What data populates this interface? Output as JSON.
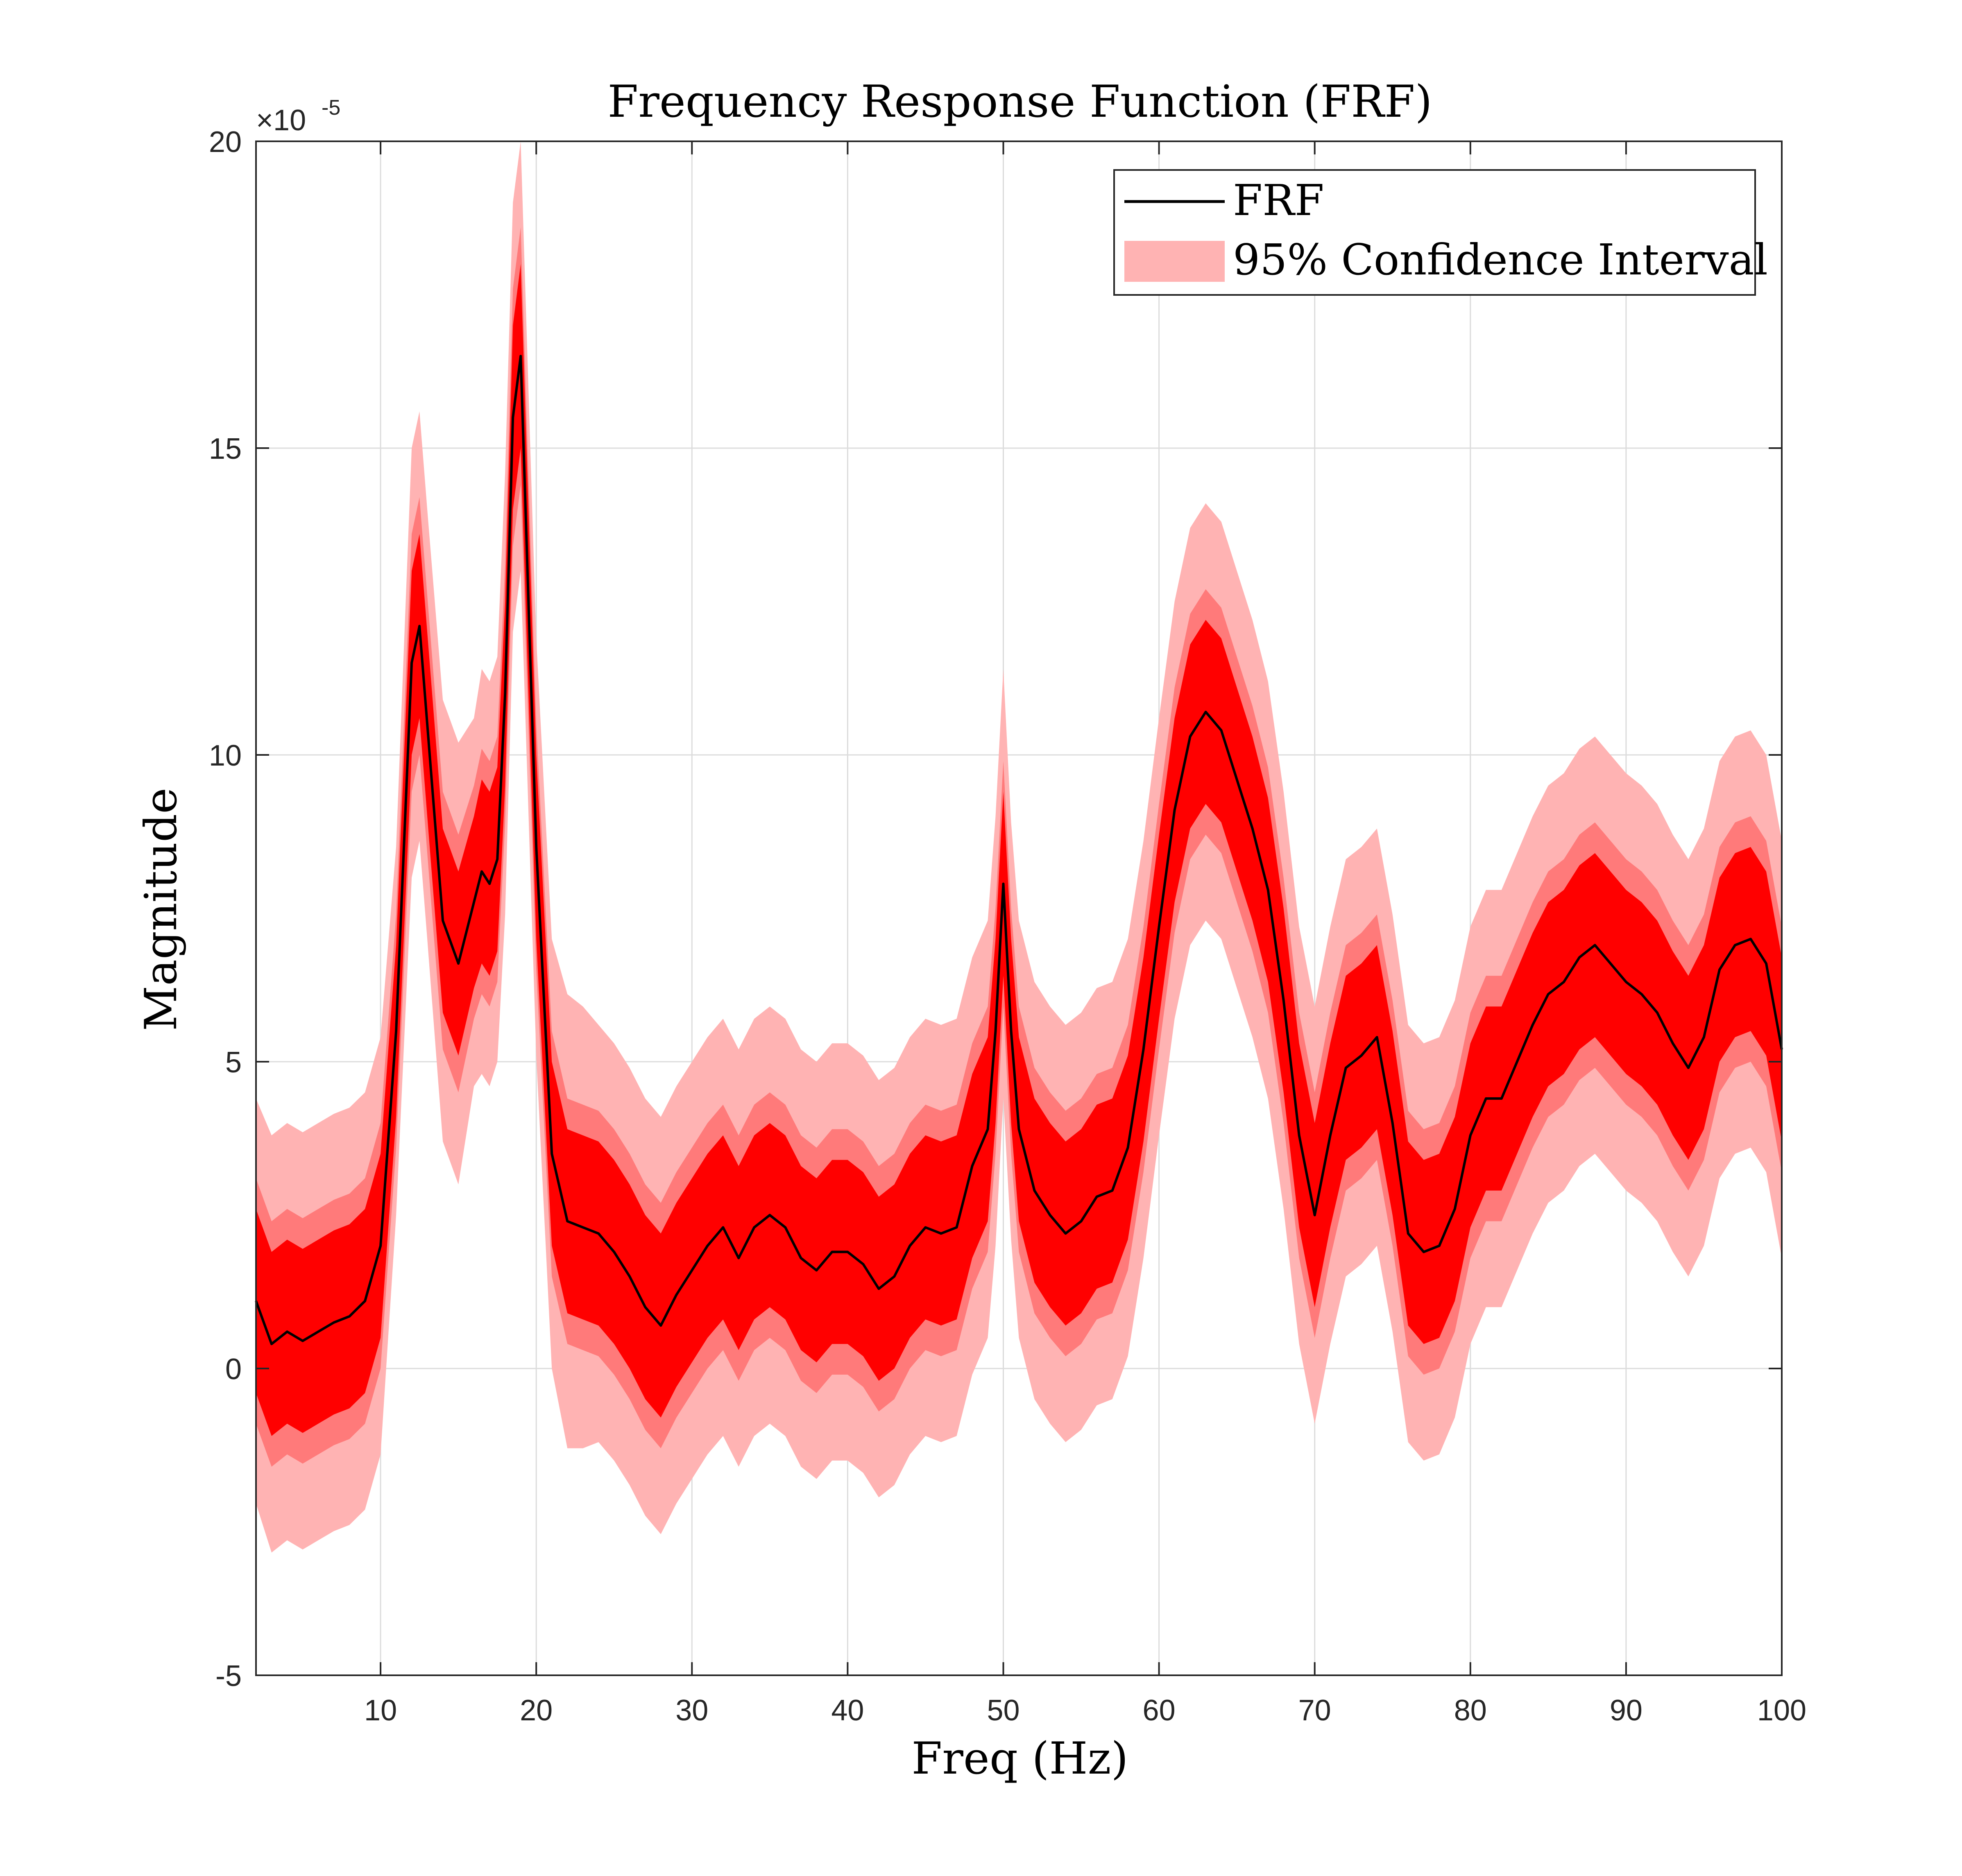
{
  "chart_data": {
    "type": "area",
    "title": "Frequency Response Function (FRF)",
    "xlabel": "Freq (Hz)",
    "ylabel": "Magnitude",
    "y_multiplier_label": "×10",
    "y_multiplier_exponent": "-5",
    "xlim": [
      2,
      100
    ],
    "ylim": [
      -5,
      20
    ],
    "x_ticks": [
      10,
      20,
      30,
      40,
      50,
      60,
      70,
      80,
      90,
      100
    ],
    "y_ticks": [
      -5,
      0,
      5,
      10,
      15,
      20
    ],
    "x_tick_labels": [
      "10",
      "20",
      "30",
      "40",
      "50",
      "60",
      "70",
      "80",
      "90",
      "100"
    ],
    "y_tick_labels": [
      "-5",
      "0",
      "5",
      "10",
      "15",
      "20"
    ],
    "grid": true,
    "legend_position": "top-right",
    "legend": [
      {
        "label": "FRF",
        "kind": "line",
        "color": "#000000"
      },
      {
        "label": "95% Confidence Interval",
        "kind": "patch",
        "color": "#ffb3b3"
      }
    ],
    "colors": {
      "frf_line": "#000000",
      "band_outer": "#ffb3b3",
      "band_mid": "#ff7a7a",
      "band_inner": "#ff0000",
      "grid": "#dcdcdc",
      "axes": "#262626"
    },
    "series": [
      {
        "name": "FRF",
        "x": [
          2,
          3,
          4,
          5,
          6,
          7,
          8,
          9,
          10,
          11,
          12,
          12.5,
          13,
          14,
          15,
          16,
          16.5,
          17,
          17.5,
          18,
          18.5,
          19,
          20,
          21,
          22,
          23,
          24,
          25,
          26,
          27,
          28,
          29,
          30,
          31,
          32,
          33,
          34,
          35,
          36,
          37,
          38,
          39,
          40,
          41,
          42,
          43,
          44,
          45,
          46,
          47,
          48,
          49,
          49.5,
          50,
          50.5,
          51,
          52,
          53,
          54,
          55,
          56,
          57,
          58,
          59,
          60,
          61,
          62,
          63,
          64,
          65,
          66,
          67,
          68,
          69,
          70,
          71,
          72,
          73,
          74,
          75,
          76,
          77,
          78,
          79,
          80,
          81,
          82,
          83,
          84,
          85,
          86,
          87,
          88,
          89,
          90,
          91,
          92,
          93,
          94,
          95,
          96,
          97,
          98,
          99,
          100
        ],
        "y": [
          1.1,
          0.4,
          0.6,
          0.45,
          0.6,
          0.75,
          0.85,
          1.1,
          2.0,
          5.5,
          11.5,
          12.1,
          10.5,
          7.3,
          6.6,
          7.6,
          8.1,
          7.9,
          8.3,
          11.0,
          15.5,
          16.5,
          8.5,
          3.5,
          2.4,
          2.3,
          2.2,
          1.9,
          1.5,
          1.0,
          0.7,
          1.2,
          1.6,
          2.0,
          2.3,
          1.8,
          2.3,
          2.5,
          2.3,
          1.8,
          1.6,
          1.9,
          1.9,
          1.7,
          1.3,
          1.5,
          2.0,
          2.3,
          2.2,
          2.3,
          3.3,
          3.9,
          5.5,
          7.9,
          5.5,
          3.9,
          2.9,
          2.5,
          2.2,
          2.4,
          2.8,
          2.9,
          3.6,
          5.2,
          7.2,
          9.1,
          10.3,
          10.7,
          10.4,
          9.6,
          8.8,
          7.8,
          6.0,
          3.8,
          2.5,
          3.8,
          4.9,
          5.1,
          5.4,
          4.0,
          2.2,
          1.9,
          2.0,
          2.6,
          3.8,
          4.4,
          4.4,
          5.0,
          5.6,
          6.1,
          6.3,
          6.7,
          6.9,
          6.6,
          6.3,
          6.1,
          5.8,
          5.3,
          4.9,
          5.4,
          6.5,
          6.9,
          7.0,
          6.6,
          5.2
        ]
      }
    ],
    "confidence_band": {
      "name": "95% Confidence Interval",
      "half_width_outer": [
        3.3,
        3.4,
        3.4,
        3.4,
        3.4,
        3.4,
        3.4,
        3.4,
        3.4,
        3.0,
        3.5,
        3.5,
        3.5,
        3.6,
        3.6,
        3.0,
        3.3,
        3.3,
        3.3,
        3.6,
        3.5,
        3.5,
        3.4,
        3.5,
        3.7,
        3.6,
        3.4,
        3.4,
        3.4,
        3.4,
        3.4,
        3.4,
        3.4,
        3.4,
        3.4,
        3.4,
        3.4,
        3.4,
        3.4,
        3.4,
        3.4,
        3.4,
        3.4,
        3.4,
        3.4,
        3.4,
        3.4,
        3.4,
        3.4,
        3.4,
        3.4,
        3.4,
        3.5,
        3.5,
        3.4,
        3.4,
        3.4,
        3.4,
        3.4,
        3.4,
        3.4,
        3.4,
        3.4,
        3.4,
        3.4,
        3.4,
        3.4,
        3.4,
        3.4,
        3.4,
        3.4,
        3.4,
        3.4,
        3.4,
        3.4,
        3.4,
        3.4,
        3.4,
        3.4,
        3.4,
        3.4,
        3.4,
        3.4,
        3.4,
        3.4,
        3.4,
        3.4,
        3.4,
        3.4,
        3.4,
        3.4,
        3.4,
        3.4,
        3.4,
        3.4,
        3.4,
        3.4,
        3.4,
        3.4,
        3.4,
        3.4,
        3.4,
        3.4,
        3.4,
        3.4
      ],
      "half_width_mid": [
        2.0,
        2.0,
        2.0,
        2.0,
        2.0,
        2.0,
        2.0,
        2.0,
        2.0,
        1.9,
        2.1,
        2.1,
        2.1,
        2.1,
        2.1,
        1.9,
        2.0,
        2.0,
        2.0,
        2.1,
        2.1,
        2.1,
        2.0,
        2.0,
        2.0,
        2.0,
        2.0,
        2.0,
        2.0,
        2.0,
        2.0,
        2.0,
        2.0,
        2.0,
        2.0,
        2.0,
        2.0,
        2.0,
        2.0,
        2.0,
        2.0,
        2.0,
        2.0,
        2.0,
        2.0,
        2.0,
        2.0,
        2.0,
        2.0,
        2.0,
        2.0,
        2.0,
        2.0,
        2.0,
        2.0,
        2.0,
        2.0,
        2.0,
        2.0,
        2.0,
        2.0,
        2.0,
        2.0,
        2.0,
        2.0,
        2.0,
        2.0,
        2.0,
        2.0,
        2.0,
        2.0,
        2.0,
        2.0,
        2.0,
        2.0,
        2.0,
        2.0,
        2.0,
        2.0,
        2.0,
        2.0,
        2.0,
        2.0,
        2.0,
        2.0,
        2.0,
        2.0,
        2.0,
        2.0,
        2.0,
        2.0,
        2.0,
        2.0,
        2.0,
        2.0,
        2.0,
        2.0,
        2.0,
        2.0,
        2.0,
        2.0,
        2.0,
        2.0,
        2.0,
        2.0
      ],
      "half_width_inner": [
        1.5,
        1.5,
        1.5,
        1.5,
        1.5,
        1.5,
        1.5,
        1.5,
        1.5,
        1.4,
        1.5,
        1.5,
        1.5,
        1.5,
        1.5,
        1.4,
        1.5,
        1.5,
        1.5,
        1.5,
        1.5,
        1.5,
        1.5,
        1.5,
        1.5,
        1.5,
        1.5,
        1.5,
        1.5,
        1.5,
        1.5,
        1.5,
        1.5,
        1.5,
        1.5,
        1.5,
        1.5,
        1.5,
        1.5,
        1.5,
        1.5,
        1.5,
        1.5,
        1.5,
        1.5,
        1.5,
        1.5,
        1.5,
        1.5,
        1.5,
        1.5,
        1.5,
        1.5,
        1.5,
        1.5,
        1.5,
        1.5,
        1.5,
        1.5,
        1.5,
        1.5,
        1.5,
        1.5,
        1.5,
        1.5,
        1.5,
        1.5,
        1.5,
        1.5,
        1.5,
        1.5,
        1.5,
        1.5,
        1.5,
        1.5,
        1.5,
        1.5,
        1.5,
        1.5,
        1.5,
        1.5,
        1.5,
        1.5,
        1.5,
        1.5,
        1.5,
        1.5,
        1.5,
        1.5,
        1.5,
        1.5,
        1.5,
        1.5,
        1.5,
        1.5,
        1.5,
        1.5,
        1.5,
        1.5,
        1.5,
        1.5,
        1.5,
        1.5,
        1.5,
        1.5
      ]
    }
  }
}
